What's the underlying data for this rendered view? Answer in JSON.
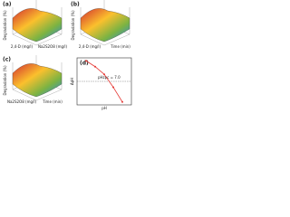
{
  "panels": [
    {
      "label": "(a)",
      "z_label": "Degradation (%)",
      "x_label": "2,4-D (mg/l)",
      "y_label": "Na2S2O8 (mg/l)"
    },
    {
      "label": "(b)",
      "z_label": "Degradation (%)",
      "x_label": "2,4-D (mg/l)",
      "y_label": "Time (min)"
    },
    {
      "label": "(c)",
      "z_label": "Degradation (%)",
      "x_label": "Na2S2O8 (mg/l)",
      "y_label": "Time (min)"
    }
  ],
  "chart_data": {
    "type": "line",
    "title": "(d)",
    "x_label": "pH",
    "y_label": "ΔpH",
    "x": [
      2,
      4,
      6,
      8,
      10
    ],
    "values": [
      3.5,
      2.5,
      1.2,
      -1,
      -3.5
    ],
    "color": "#e53935",
    "annotation": "pHzpc = 7.0",
    "xlim": [
      0,
      12
    ],
    "ylim": [
      -4,
      4
    ]
  }
}
